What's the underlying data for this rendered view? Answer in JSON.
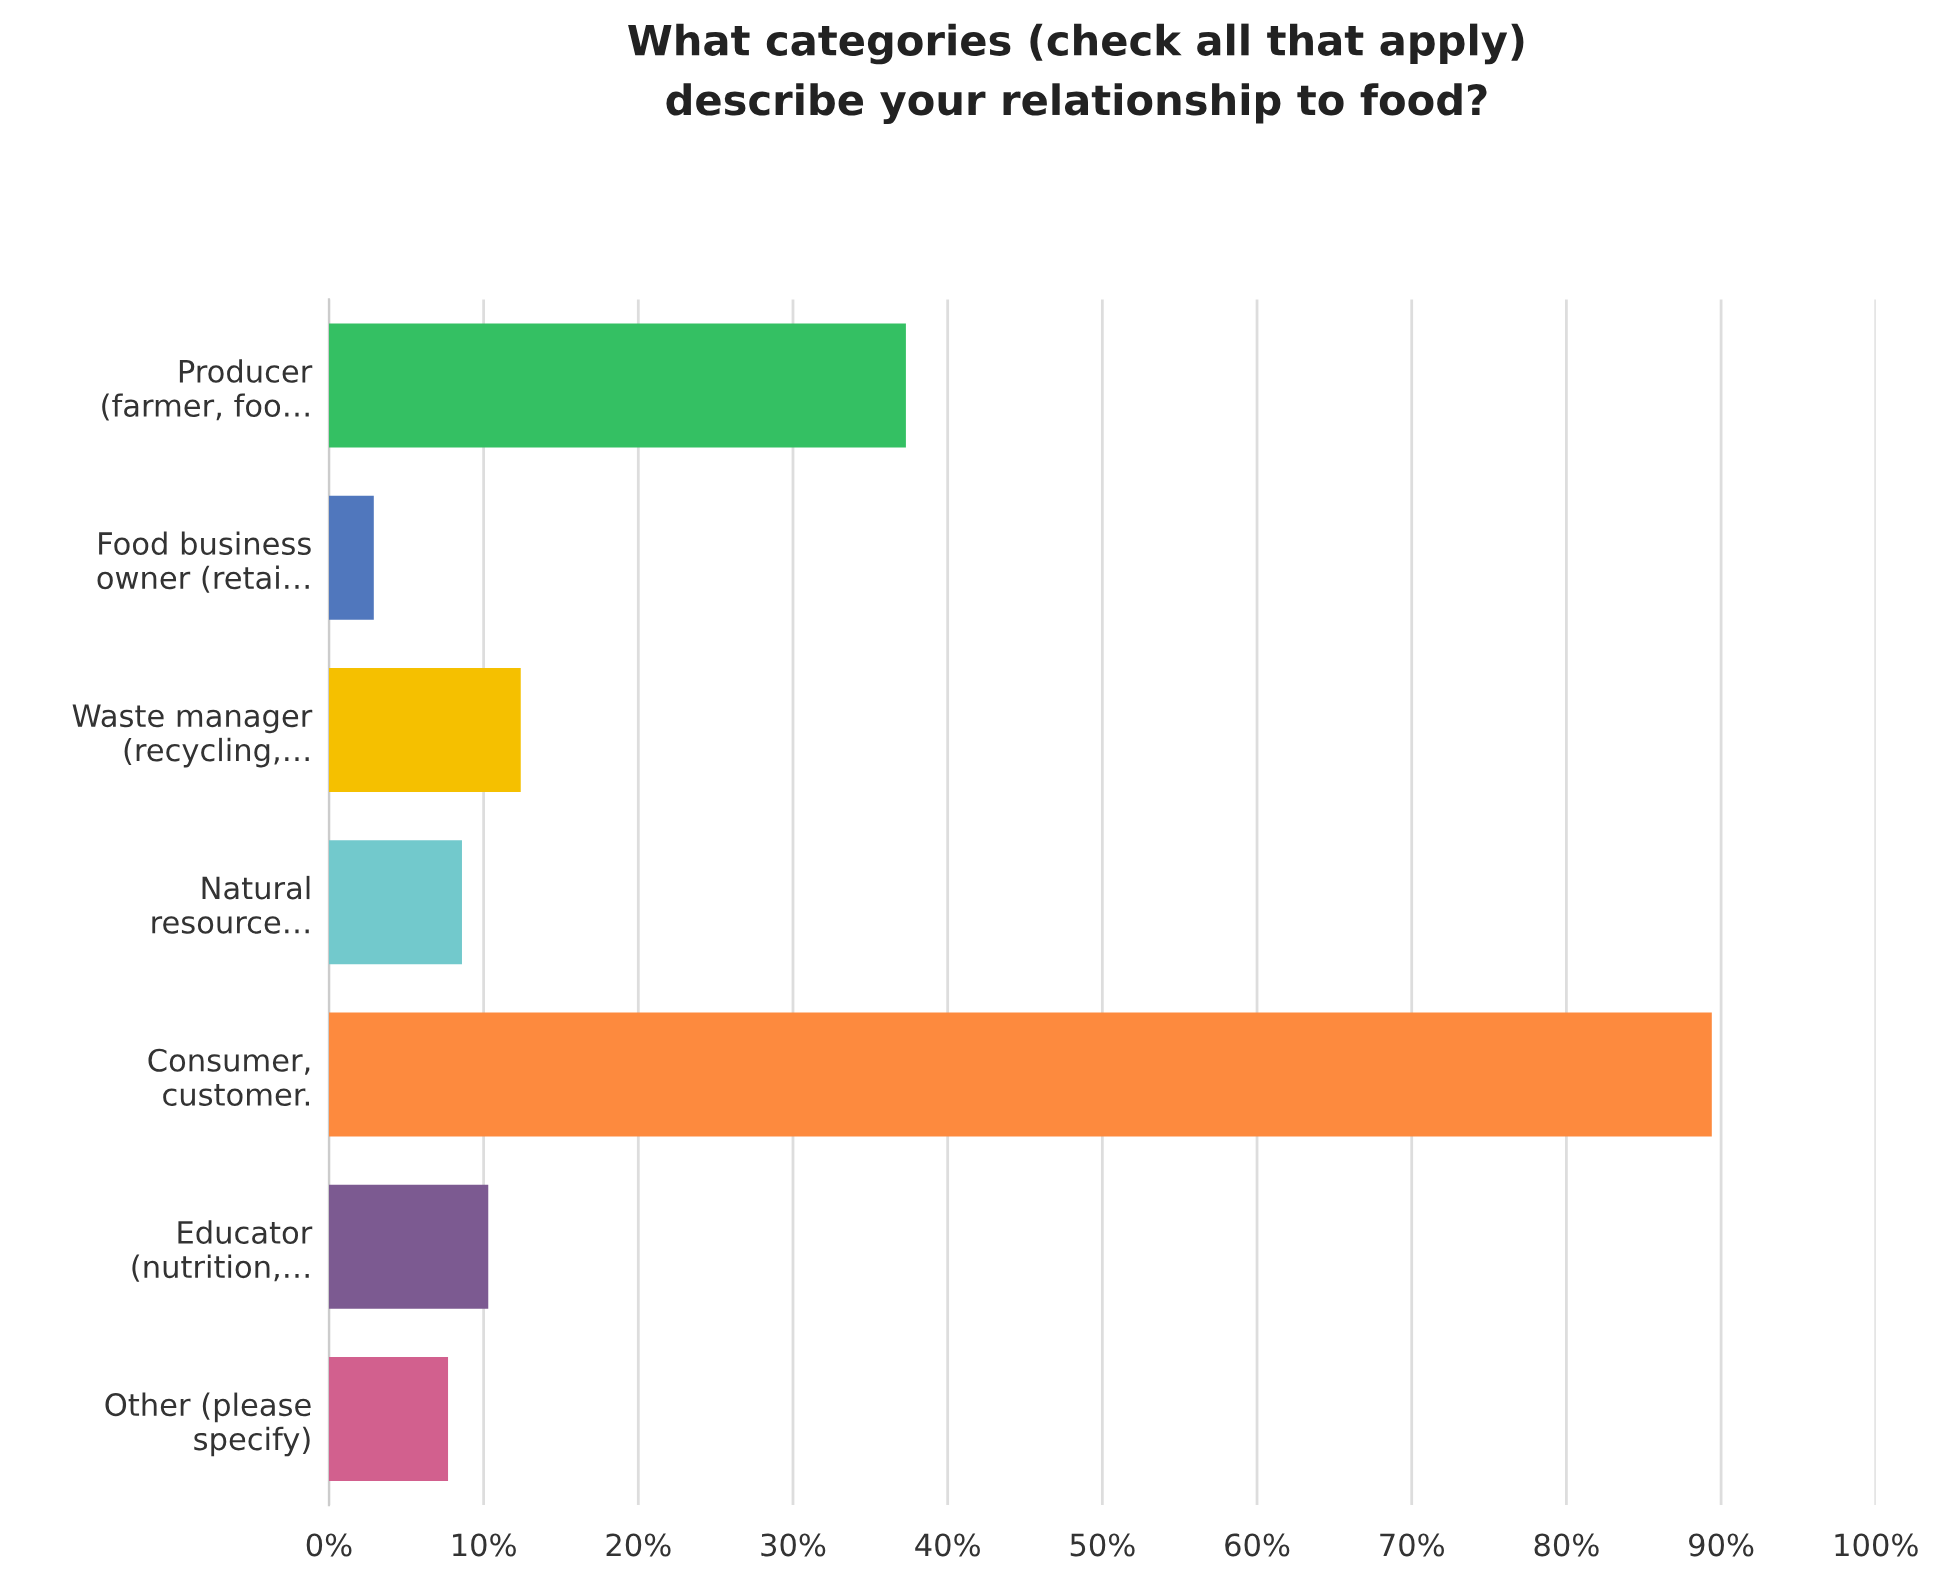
{
  "chart_data": {
    "type": "bar",
    "orientation": "horizontal",
    "title": "What categories (check all that apply)\ndescribe your relationship to food?",
    "categories": [
      "Producer\n(farmer, foo…",
      "Food business\nowner (retai…",
      "Waste manager\n(recycling,…",
      "Natural\nresource…",
      "Consumer,\ncustomer.",
      "Educator\n(nutrition,…",
      "Other (please\nspecify)"
    ],
    "values": [
      37.3,
      2.9,
      12.4,
      8.6,
      89.4,
      10.3,
      7.7
    ],
    "colors": [
      "#34c063",
      "#5077bd",
      "#f5c000",
      "#72c9cc",
      "#fd8a3e",
      "#7c5a91",
      "#d2608e"
    ],
    "xlim": [
      0,
      100
    ],
    "xticks": [
      {
        "value": 0,
        "label": "0%"
      },
      {
        "value": 10,
        "label": "10%"
      },
      {
        "value": 20,
        "label": "20%"
      },
      {
        "value": 30,
        "label": "30%"
      },
      {
        "value": 40,
        "label": "40%"
      },
      {
        "value": 50,
        "label": "50%"
      },
      {
        "value": 60,
        "label": "60%"
      },
      {
        "value": 70,
        "label": "70%"
      },
      {
        "value": 80,
        "label": "80%"
      },
      {
        "value": 90,
        "label": "90%"
      },
      {
        "value": 100,
        "label": "100%"
      }
    ],
    "grid": "x"
  }
}
